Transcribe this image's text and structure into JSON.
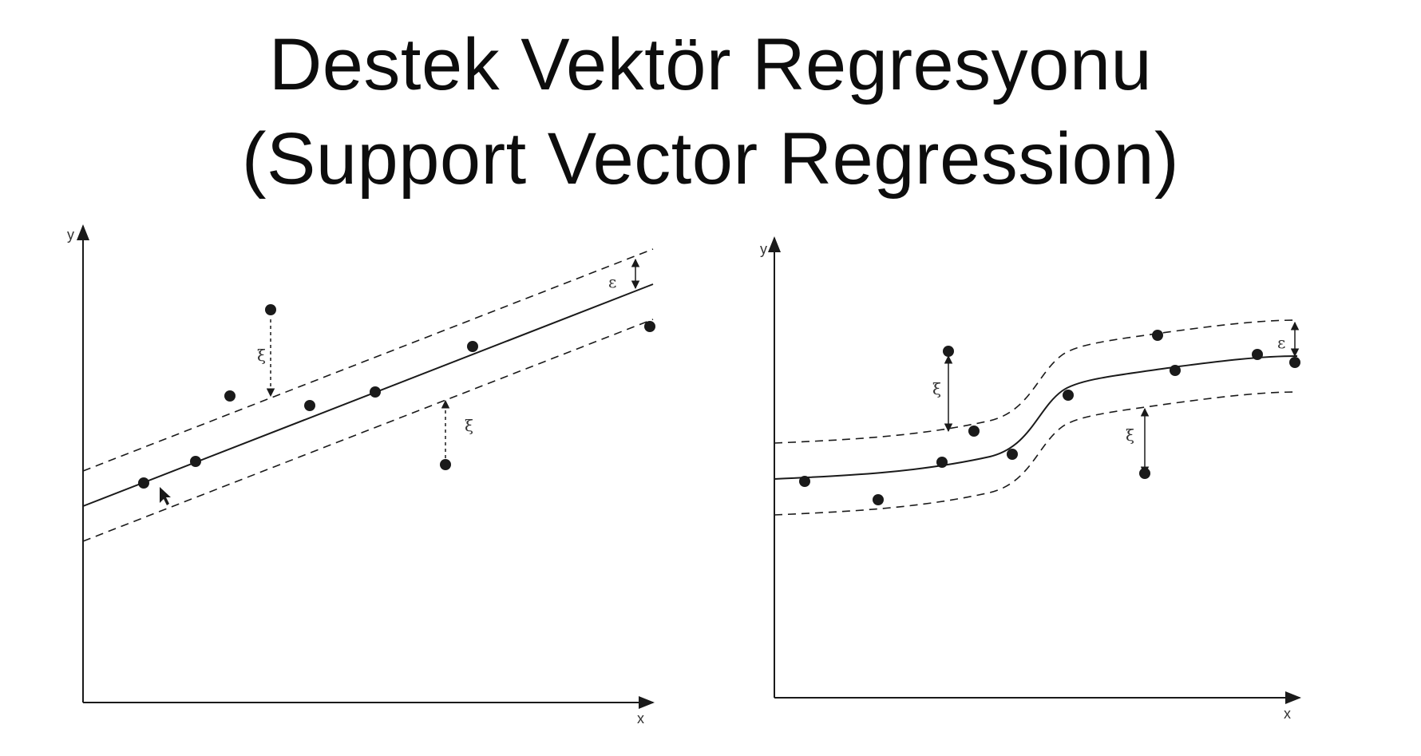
{
  "title": {
    "line1": "Destek Vektör Regresyonu",
    "line2": "(Support Vector Regression)"
  },
  "diagrams": {
    "linear": {
      "x_axis_label": "x",
      "y_axis_label": "y",
      "epsilon_label": "ε",
      "slack_label_upper": "ξ",
      "slack_label_lower": "ξ"
    },
    "nonlinear": {
      "x_axis_label": "x",
      "y_axis_label": "y",
      "epsilon_label": "ε",
      "slack_label_upper": "ξ",
      "slack_label_lower": "ξ"
    }
  },
  "colors": {
    "ink": "#1a1a1a",
    "background": "#ffffff"
  }
}
